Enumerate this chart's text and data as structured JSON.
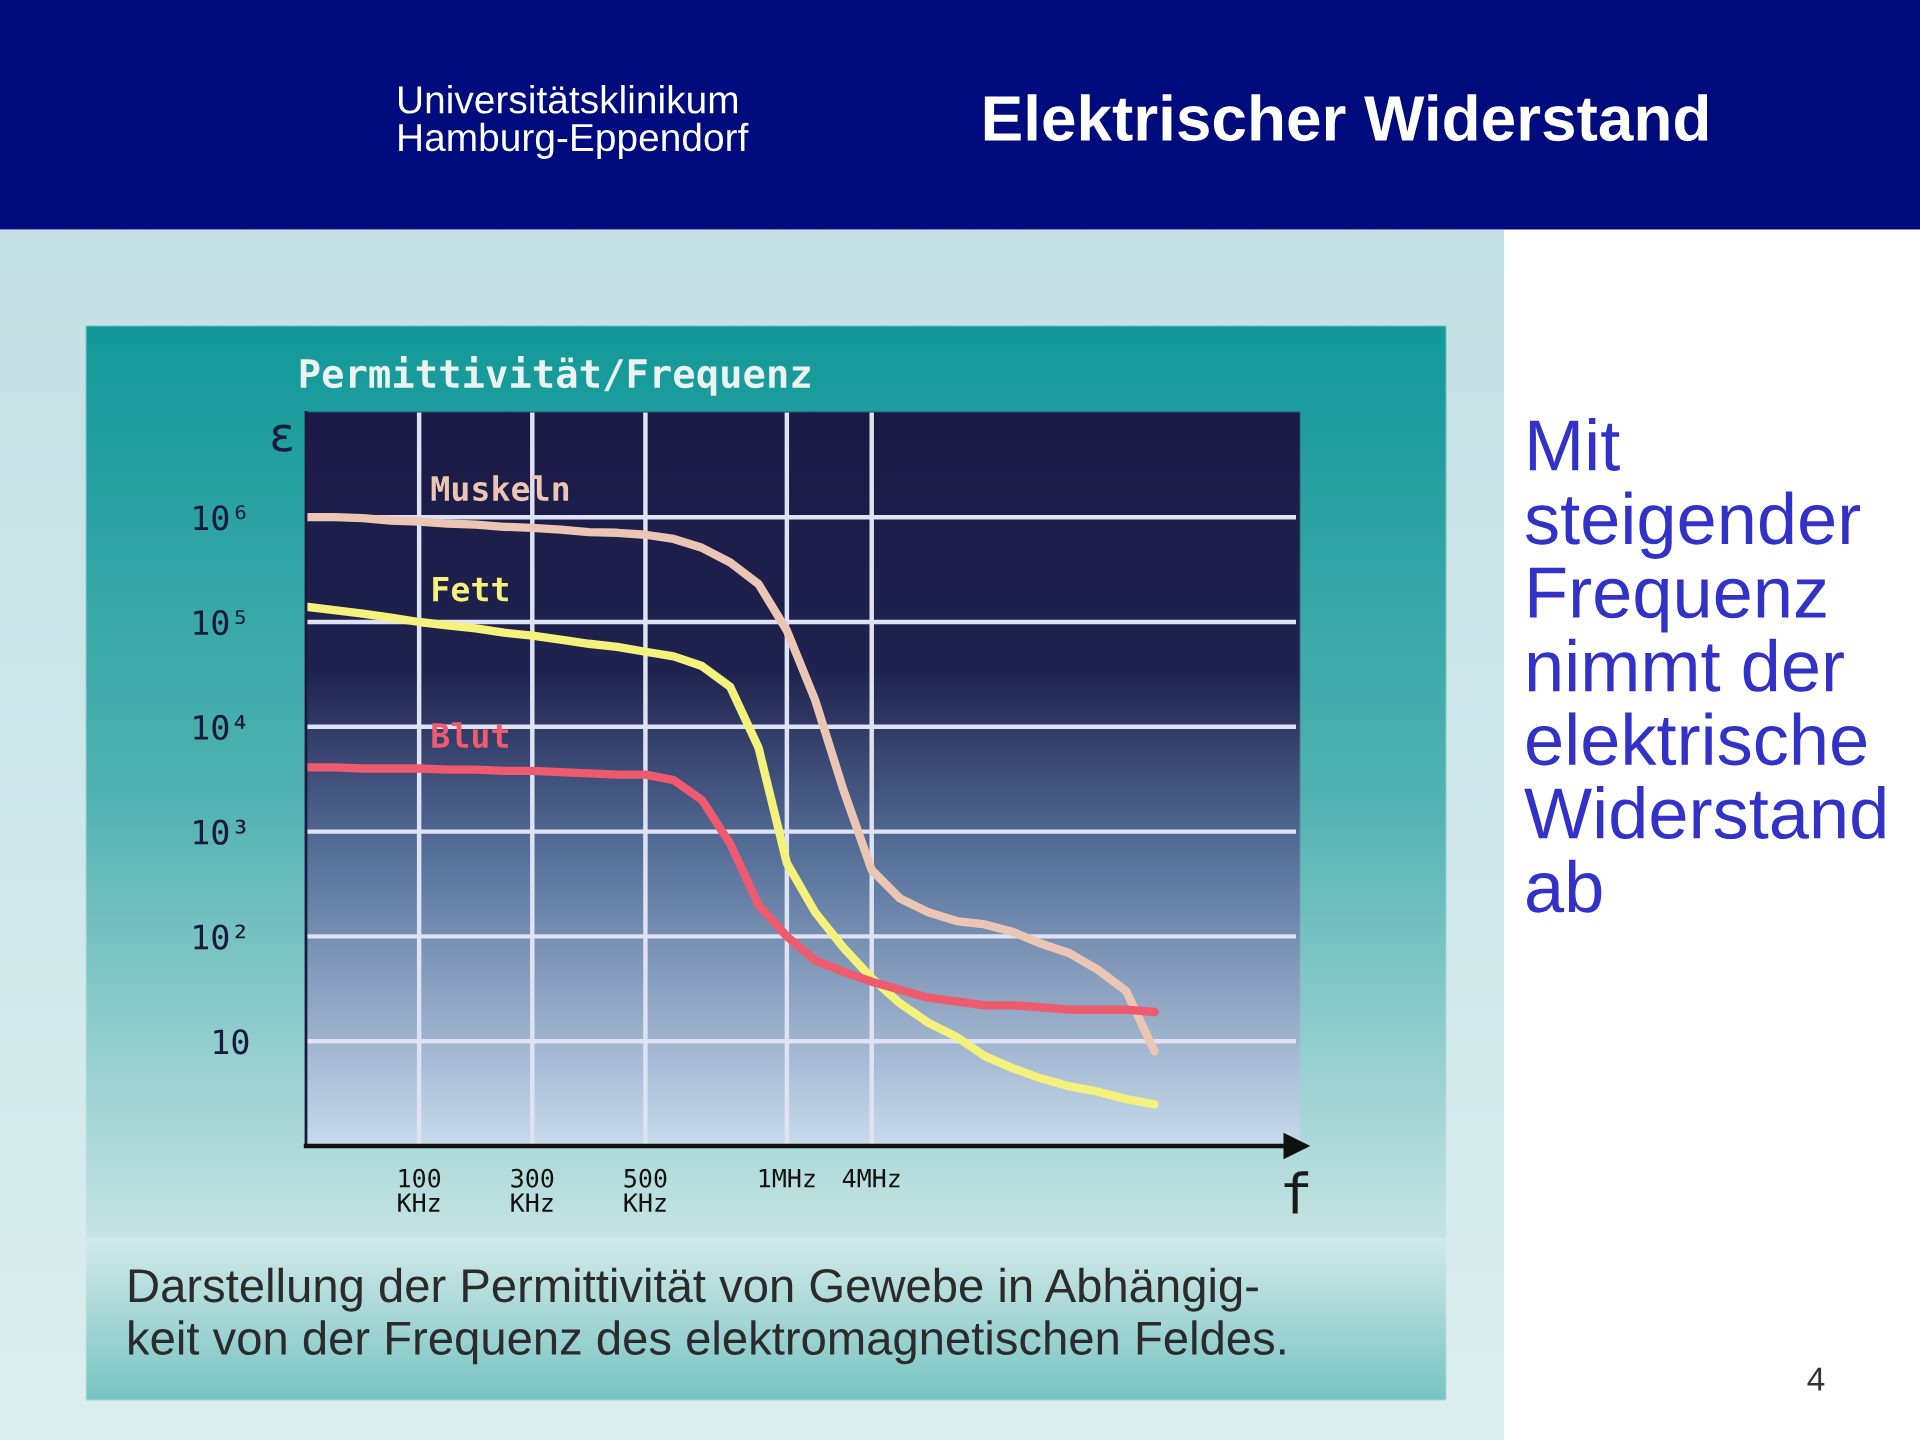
{
  "chart_data": {
    "type": "line",
    "title": "Elektrischer Widerstand",
    "subtitle": "Permittivität/Frequenz",
    "xlabel": "f",
    "ylabel": "ε",
    "annotations": [
      "Universitätsklinikum\nHamburg-Eppendorf",
      "Mit\nsteigender\nFrequenz\nnimmt der\nelektrische\nWiderstand\nab",
      "Darstellung der Permittivität von Gewebe in Abhängig-\nkeit von der Frequenz des elektromagnetischen Feldes.",
      "4"
    ],
    "categories": [
      null,
      null,
      null,
      null,
      "100\nKHz",
      null,
      null,
      null,
      "300\nKHz",
      null,
      null,
      null,
      "500\nKHz",
      null,
      null,
      null,
      null,
      "1MHz",
      null,
      null,
      "4MHz",
      null,
      null,
      null,
      null,
      null,
      null,
      null,
      null,
      null,
      null,
      null,
      null,
      null,
      null,
      null
    ],
    "series": [
      {
        "name": "Muskeln",
        "color": "#ecc6b4",
        "values": [
          1000000,
          1000000,
          980000,
          930000,
          910000,
          870000,
          850000,
          810000,
          790000,
          760000,
          720000,
          710000,
          680000,
          620000,
          510000,
          370000,
          230000,
          83000,
          18000,
          2500,
          430,
          230,
          170,
          140,
          130,
          110,
          85,
          69,
          48,
          30,
          8,
          null,
          null,
          null,
          null,
          null
        ]
      },
      {
        "name": "Fett",
        "color": "#f4f27c",
        "values": [
          140000,
          130000,
          120000,
          110000,
          100000,
          93000,
          87000,
          79000,
          74000,
          68000,
          62000,
          58000,
          52000,
          47000,
          38000,
          24000,
          6300,
          500,
          170,
          78,
          40,
          23,
          15,
          11,
          7.2,
          5.5,
          4.4,
          3.7,
          3.3,
          2.8,
          2.5,
          null,
          null,
          null,
          null,
          null
        ]
      },
      {
        "name": "Blut",
        "color": "#ee5a6e",
        "values": [
          4100,
          4100,
          4000,
          4000,
          4000,
          3900,
          3900,
          3800,
          3800,
          3700,
          3600,
          3500,
          3500,
          3100,
          2000,
          760,
          200,
          100,
          59,
          46,
          37,
          31,
          26,
          24,
          22,
          22,
          21,
          20,
          20,
          20,
          19,
          null,
          null,
          null,
          null,
          null
        ]
      }
    ],
    "ylim": [
      1,
      10000000
    ],
    "log": "y",
    "yticks": [
      10,
      {
        "value": 100,
        "label": "10²"
      },
      {
        "value": 1000,
        "label": "10³"
      },
      {
        "value": 10000,
        "label": "10⁴"
      },
      {
        "value": 100000,
        "label": "10⁵"
      },
      {
        "value": 1000000,
        "label": "10⁶"
      }
    ],
    "grid": true
  }
}
